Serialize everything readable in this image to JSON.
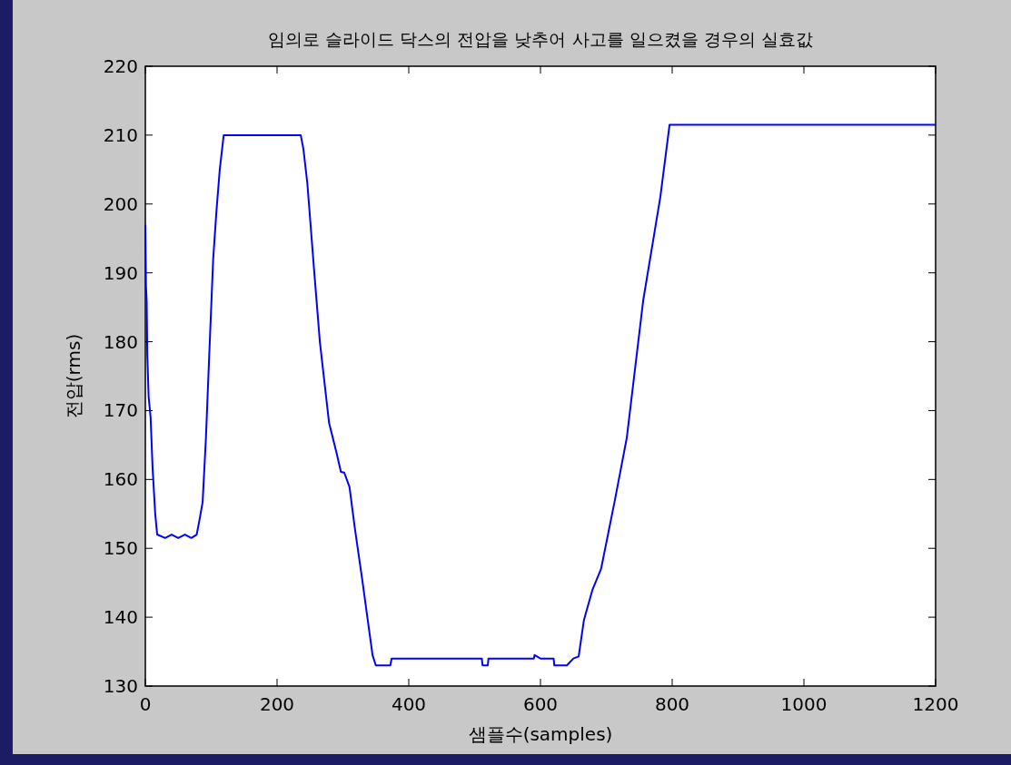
{
  "chart_data": {
    "type": "line",
    "title": "임의로 슬라이드 닥스의 전압을 낮추어 사고를 일으켰을 경우의 실효값",
    "xlabel": "샘플수(samples)",
    "ylabel": "전압(rms)",
    "xlim": [
      0,
      1200
    ],
    "ylim": [
      130,
      220
    ],
    "xticks": [
      0,
      200,
      400,
      600,
      800,
      1000,
      1200
    ],
    "yticks": [
      130,
      140,
      150,
      160,
      170,
      180,
      190,
      200,
      210,
      220
    ],
    "series": [
      {
        "color": "#0000ff",
        "x": [
          0,
          1,
          2,
          3,
          5,
          8,
          11,
          15,
          18,
          30,
          40,
          50,
          60,
          70,
          78,
          82,
          87,
          92,
          97,
          103,
          108,
          113,
          119,
          122,
          150,
          200,
          236,
          240,
          246,
          256,
          265,
          279,
          290,
          297,
          302,
          310,
          318,
          330,
          340,
          345,
          350,
          372,
          374,
          400,
          450,
          500,
          511,
          512,
          520,
          521,
          580,
          590,
          591,
          600,
          620,
          621,
          640,
          650,
          658,
          666,
          679,
          692,
          713,
          731,
          756,
          782,
          796,
          800,
          900,
          1000,
          1100,
          1200
        ],
        "values": [
          197,
          188,
          186,
          178,
          172,
          169,
          161.7,
          155,
          152,
          151.5,
          152,
          151.5,
          152,
          151.5,
          152,
          154,
          156.7,
          166,
          178,
          192,
          199,
          205,
          210,
          210,
          210,
          210,
          210,
          208,
          203,
          190.7,
          180,
          168.2,
          164,
          161.1,
          161,
          158.9,
          153,
          145,
          138,
          134.5,
          133,
          133,
          134,
          134,
          134,
          134,
          134,
          133,
          133,
          134,
          134,
          134,
          134.5,
          134,
          134,
          133,
          133,
          134,
          134.3,
          139.6,
          144,
          147,
          157,
          166,
          186,
          201,
          211.5,
          211.5,
          211.5,
          211.5,
          211.5,
          211.5
        ]
      }
    ]
  }
}
